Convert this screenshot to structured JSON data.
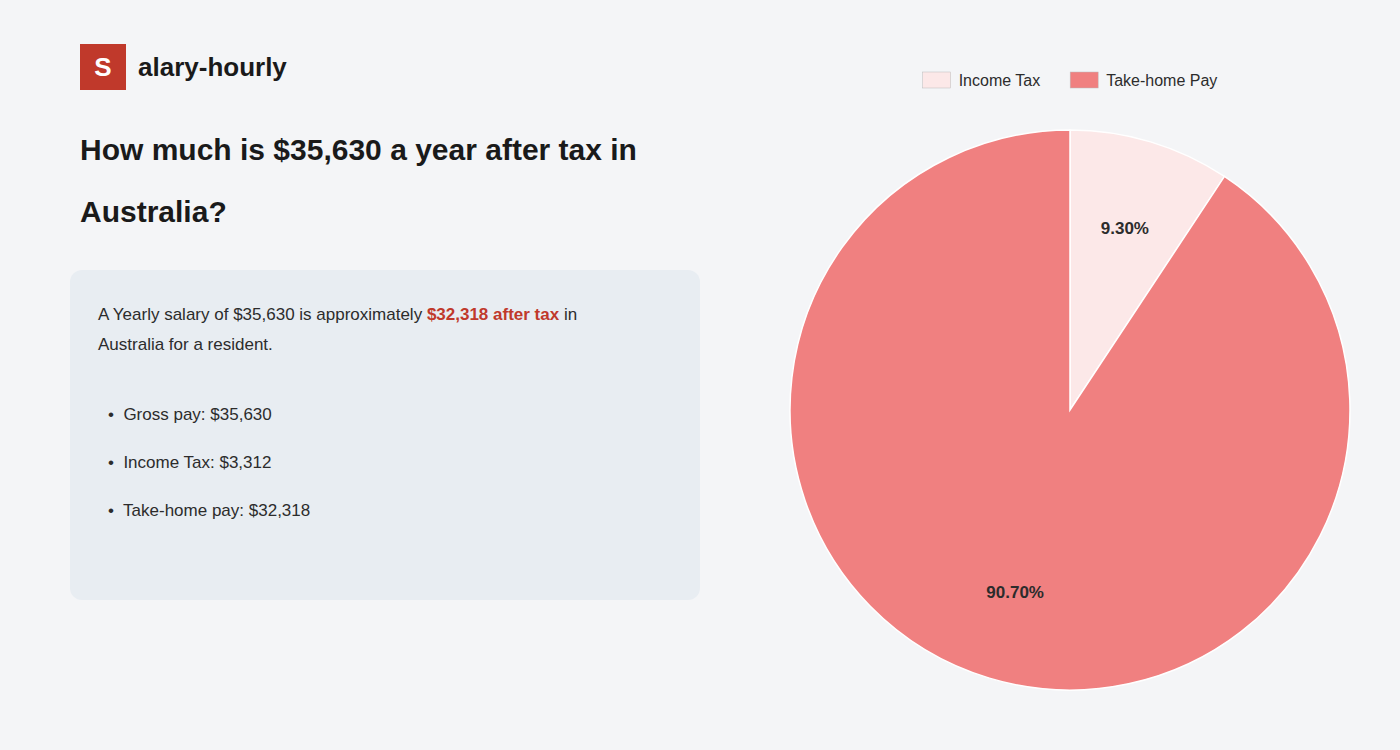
{
  "chart_data": {
    "type": "pie",
    "title": [
      "How much is $35,630 a year after tax in",
      "Australia?"
    ],
    "annotations": [
      "S",
      "alary-hourly",
      "A Yearly salary of $35,630 is approximately ",
      "$32,318 after tax",
      " in",
      "Australia for a resident.",
      "•  Gross pay: $35,630",
      "•  Income Tax: $3,312",
      "•  Take-home pay: $32,318"
    ],
    "categories": [
      "Income Tax",
      "Take-home Pay"
    ],
    "values": [
      9.3,
      90.7
    ],
    "value_labels": [
      "9.30%",
      "90.70%"
    ],
    "colors": [
      "#fce8e8",
      "#f08080"
    ],
    "data_labels": true,
    "legend": "top"
  }
}
